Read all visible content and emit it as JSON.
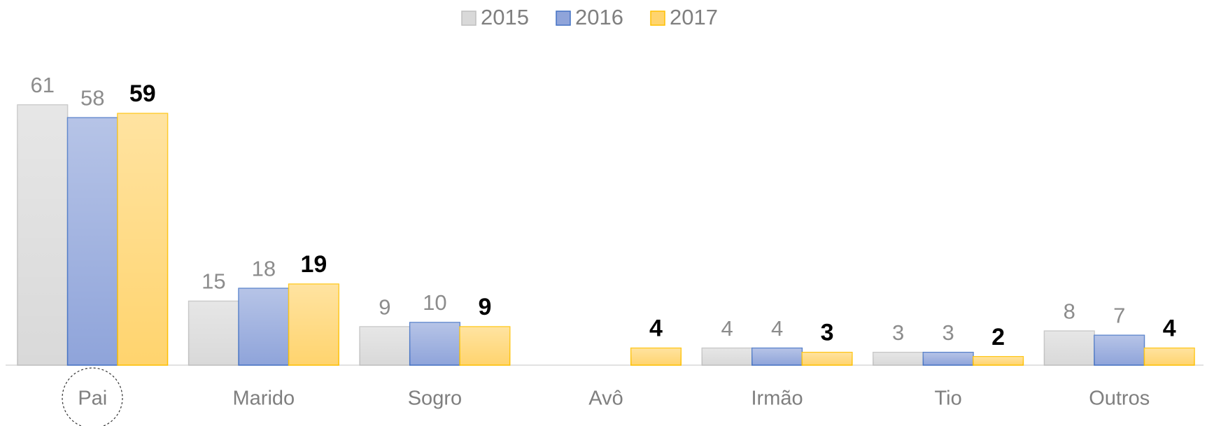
{
  "chart_data": {
    "type": "bar",
    "categories": [
      "Pai",
      "Marido",
      "Sogro",
      "Avô",
      "Irmão",
      "Tio",
      "Outros"
    ],
    "series": [
      {
        "name": "2015",
        "color": "#d9d9d9",
        "edge_color": "#bfbfbf",
        "values": [
          61,
          15,
          9,
          null,
          4,
          3,
          8
        ]
      },
      {
        "name": "2016",
        "color": "#8fa4da",
        "edge_color": "#4472c4",
        "values": [
          58,
          18,
          10,
          null,
          4,
          3,
          7
        ]
      },
      {
        "name": "2017",
        "color": "#ffd46e",
        "edge_color": "#ffc000",
        "values": [
          59,
          19,
          9,
          4,
          3,
          2,
          4
        ]
      }
    ],
    "legend": "top"
  }
}
